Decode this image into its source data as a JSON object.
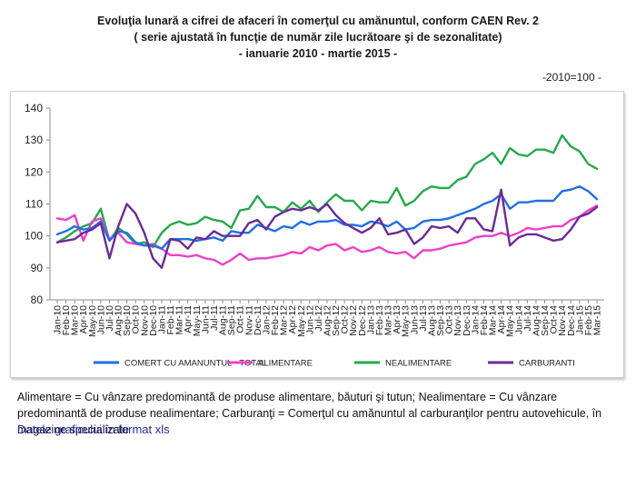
{
  "title": {
    "line1": "Evoluţia lunară a cifrei de afaceri în  comerţul cu amănuntul,  conform CAEN Rev. 2",
    "line2": "( serie ajustată în funcţie de număr zile lucrătoare şi de sezonalitate)",
    "line3": "- ianuarie 2010 -  martie 2015  -"
  },
  "base_note": "-2010=100 -",
  "footnote": "Alimentare = Cu vânzare predominantă de produse alimentare, băuturi şi tutun; Nealimentare = Cu vânzare predominantă de produse nealimentare; Carburanţi = Comerţul cu amănuntul al carburanţilor pentru  autovehicule, în magazine specializate",
  "xls_link": "Datele graficului în format xls",
  "chart_data": {
    "type": "line",
    "title": "Evoluţia lunară a cifrei de afaceri în comerţul cu amănuntul, conform CAEN Rev. 2",
    "xlabel": "",
    "ylabel": "",
    "ylim": [
      80,
      140
    ],
    "yticks": [
      80,
      90,
      100,
      110,
      120,
      130,
      140
    ],
    "grid": false,
    "legend": "bottom",
    "categories": [
      "Jan-10",
      "Feb-10",
      "Mar-10",
      "Apr-10",
      "May-10",
      "Jun-10",
      "Jul-10",
      "Aug-10",
      "Sep-10",
      "Oct-10",
      "Nov-10",
      "Dec-10",
      "Jan-11",
      "Feb-11",
      "Mar-11",
      "Apr-11",
      "May-11",
      "Jun-11",
      "Jul-11",
      "Aug-11",
      "Sep-11",
      "Oct-11",
      "Nov-11",
      "Dec-11",
      "Jan-12",
      "Feb-12",
      "Mar-12",
      "Apr-12",
      "May-12",
      "Jun-12",
      "Jul-12",
      "Aug-12",
      "Sep-12",
      "Oct-12",
      "Nov-12",
      "Dec-12",
      "Jan-13",
      "Feb-13",
      "Mar-13",
      "Apr-13",
      "May-13",
      "Jun-13",
      "Jul-13",
      "Aug-13",
      "Sep-13",
      "Oct-13",
      "Nov-13",
      "Dec-13",
      "Jan-14",
      "Feb-14",
      "Mar-14",
      "Apr-14",
      "May-14",
      "Jun-14",
      "Jul-14",
      "Aug-14",
      "Sep-14",
      "Oct-14",
      "Nov-14",
      "Dec-14",
      "Jan-15",
      "Feb-15",
      "Mar-15"
    ],
    "series": [
      {
        "name": "COMERT CU AMANUNTUL - TOTAL",
        "color": "#1f6fe5",
        "values": [
          100.5,
          101.5,
          103,
          102,
          102.5,
          104.5,
          98.5,
          101.5,
          101,
          98,
          97,
          97,
          96,
          99,
          99,
          99,
          98.5,
          99,
          99.5,
          98.5,
          101.5,
          101,
          101,
          103.5,
          102.5,
          101.5,
          103,
          102.5,
          104.5,
          103.5,
          104.5,
          104.5,
          105,
          103.5,
          103.5,
          103,
          104.5,
          104,
          103,
          104.5,
          102,
          102.5,
          104.5,
          105,
          105,
          105.5,
          106.5,
          107.5,
          108.5,
          110,
          111,
          113,
          108.5,
          110.5,
          110.5,
          111,
          111,
          111,
          114,
          114.5,
          115.5,
          114,
          111.5
        ]
      },
      {
        "name": "ALIMENTARE",
        "color": "#ee3fc8",
        "values": [
          105.5,
          105,
          106.5,
          98.5,
          104.5,
          105.5,
          99,
          101,
          98,
          97.5,
          97,
          97.5,
          96,
          94,
          94,
          93.5,
          94,
          93,
          92.5,
          91,
          92.5,
          94.5,
          92.5,
          93,
          93,
          93.5,
          94,
          95,
          94.5,
          96.5,
          95.5,
          97,
          97.5,
          95.5,
          96.5,
          95,
          95.5,
          96.5,
          95,
          94.5,
          95,
          93,
          95.5,
          95.5,
          96,
          97,
          97.5,
          98,
          99.5,
          100,
          100,
          101,
          100,
          101,
          102.5,
          102,
          102.5,
          103,
          103,
          105,
          106,
          108,
          109.5
        ]
      },
      {
        "name": "NEALIMENTARE",
        "color": "#25a84b",
        "values": [
          98,
          99.5,
          101.5,
          103,
          104,
          108.5,
          98.5,
          102.5,
          100.5,
          97.5,
          98,
          96.5,
          101,
          103.5,
          104.5,
          103.5,
          104,
          106,
          105,
          104.5,
          102.5,
          108,
          108.5,
          112.5,
          109,
          109,
          107.5,
          110.5,
          108.5,
          111,
          107.5,
          110.5,
          113,
          111,
          111,
          108,
          111,
          110.5,
          110.5,
          115,
          109.5,
          111,
          114,
          115.5,
          115,
          115,
          117.5,
          118.5,
          122.5,
          124,
          126,
          122.5,
          127.5,
          125.5,
          125,
          127,
          127,
          126,
          131.5,
          128,
          126.5,
          122.5,
          121
        ]
      },
      {
        "name": "CARBURANTI",
        "color": "#6a2c93",
        "values": [
          98,
          98.5,
          99,
          101,
          102,
          104,
          93,
          103,
          110,
          107,
          101,
          93,
          90,
          99,
          98.5,
          96,
          99.5,
          99,
          101.5,
          100,
          100,
          100,
          104,
          105,
          102,
          106,
          107.5,
          108.5,
          108,
          109,
          108,
          110,
          106.5,
          104,
          102.5,
          101,
          102.5,
          105.5,
          100.5,
          101,
          102,
          97.5,
          99.5,
          103,
          102.5,
          103,
          101,
          105.5,
          105.5,
          102,
          101.5,
          114.5,
          97,
          99.5,
          100.5,
          100.5,
          99.5,
          98.5,
          99,
          102,
          106,
          107,
          109
        ]
      }
    ]
  }
}
